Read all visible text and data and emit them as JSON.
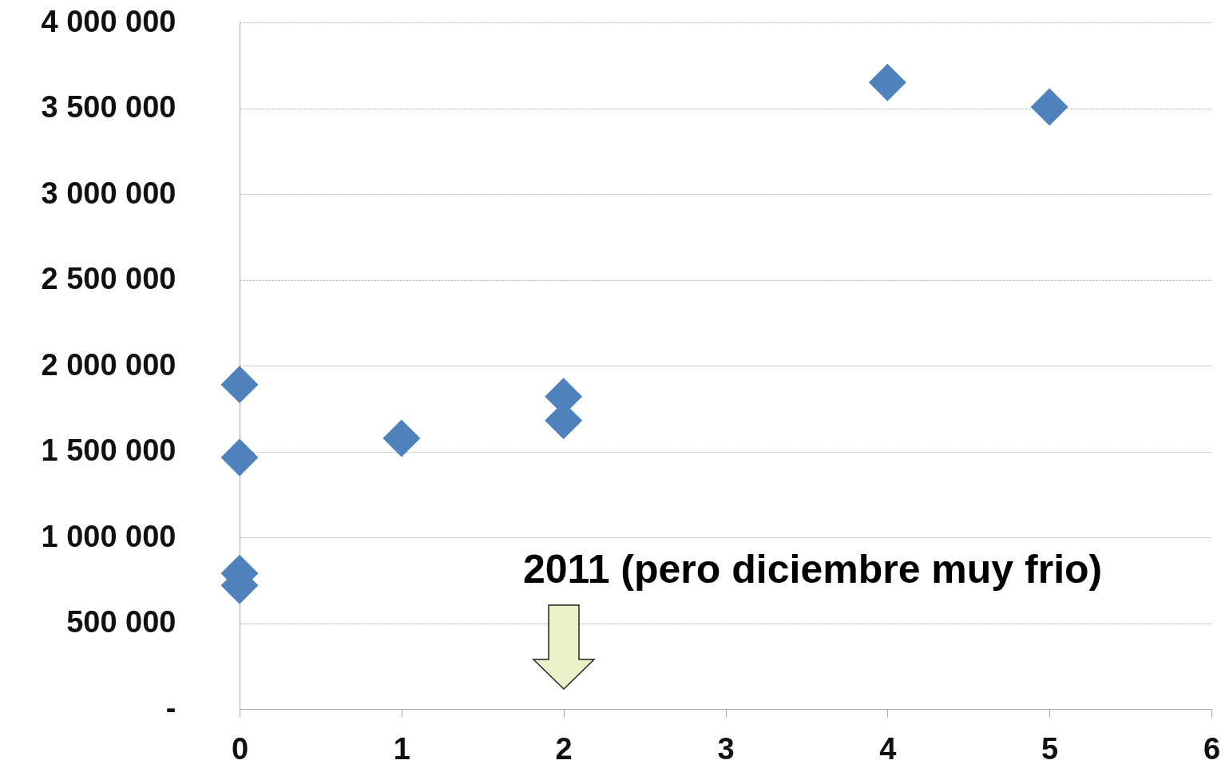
{
  "chart_data": {
    "type": "scatter",
    "marker": "diamond",
    "grid": "y",
    "x": [
      0,
      0,
      0,
      0,
      1,
      2,
      2,
      4,
      5
    ],
    "series": [
      {
        "color": "#4f81bd",
        "values": [
          1890000,
          1465000,
          790000,
          720000,
          1577000,
          1820000,
          1680000,
          3650000,
          3507000
        ]
      }
    ],
    "xlim": [
      0,
      6
    ],
    "xticks": [
      0,
      1,
      2,
      3,
      4,
      5,
      6
    ],
    "ylim": [
      0,
      4000000
    ],
    "yticks": [
      {
        "value": 0,
        "label": "-"
      },
      {
        "value": 500000,
        "label": "500 000"
      },
      {
        "value": 1000000,
        "label": "1 000 000"
      },
      {
        "value": 1500000,
        "label": "1 500 000"
      },
      {
        "value": 2000000,
        "label": "2 000 000"
      },
      {
        "value": 2500000,
        "label": "2 500 000"
      },
      {
        "value": 3000000,
        "label": "3 000 000"
      },
      {
        "value": 3500000,
        "label": "3 500 000"
      },
      {
        "value": 4000000,
        "label": "4 000 000"
      }
    ],
    "annotations": [
      "2011 (pero diciembre muy frio)"
    ]
  }
}
